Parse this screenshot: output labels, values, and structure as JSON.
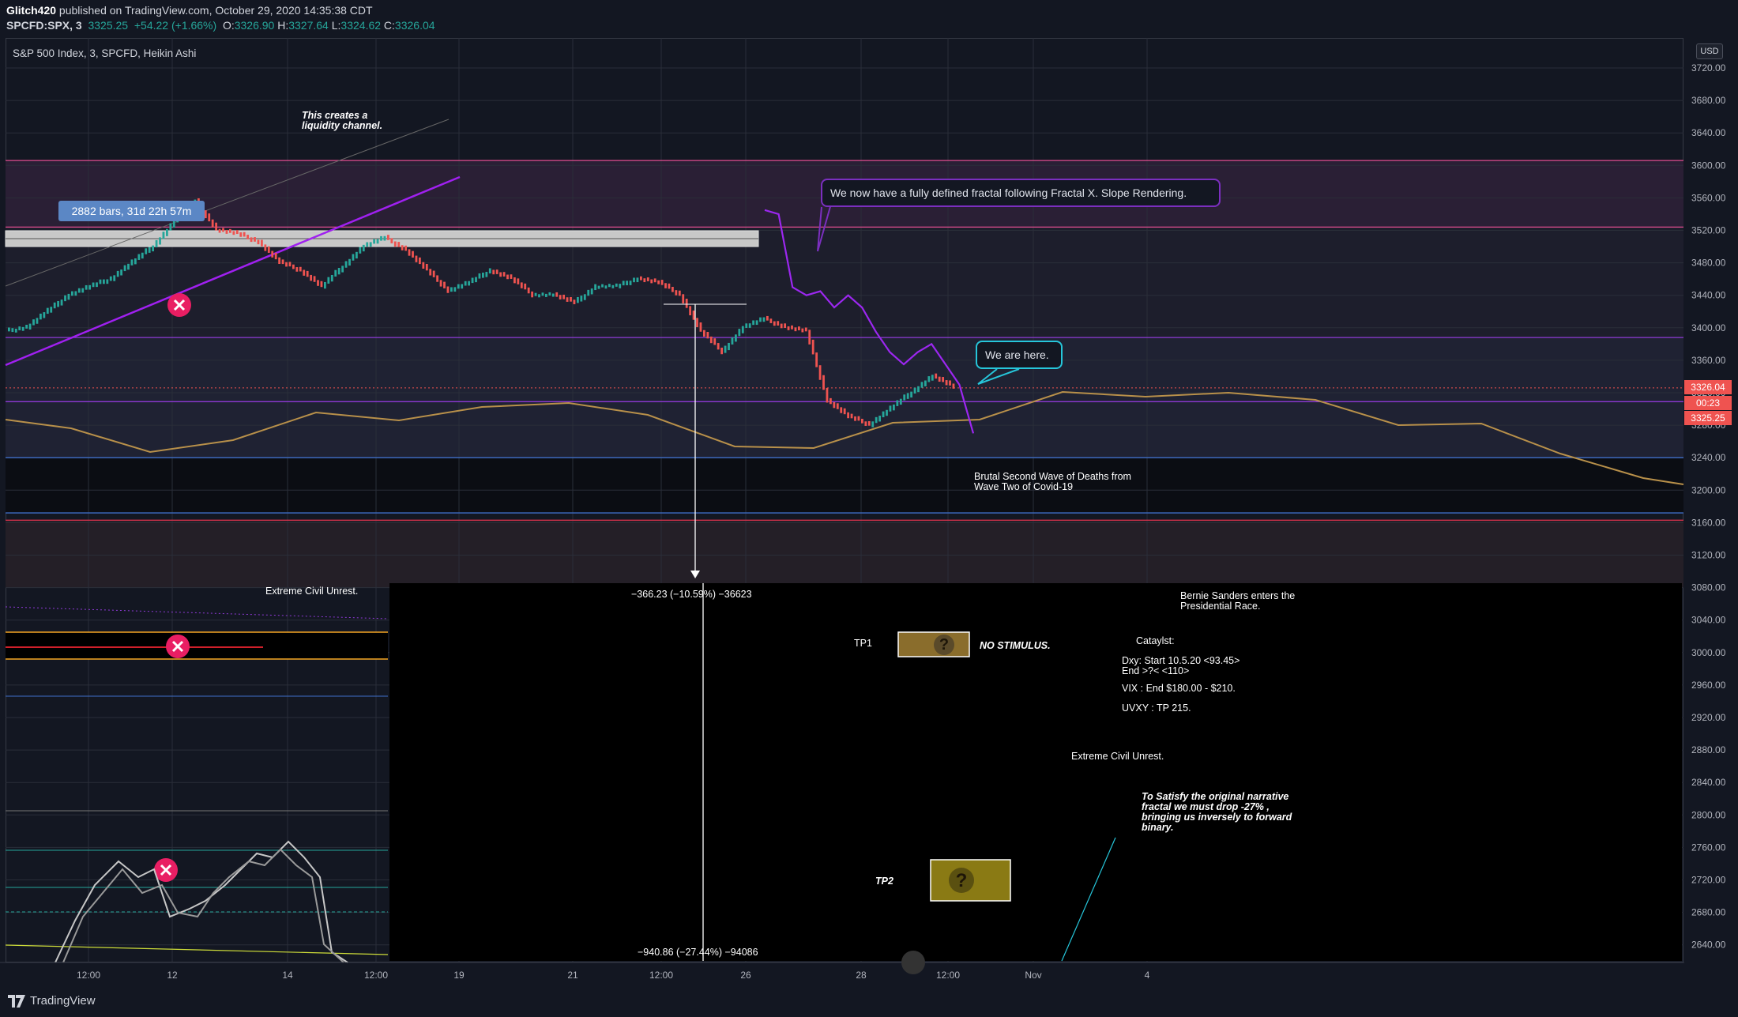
{
  "header": {
    "author": "Glitch420",
    "published": "published on TradingView.com, October 29, 2020 14:35:38 CDT",
    "symbol": "SPCFD:SPX, 3",
    "last": "3325.25",
    "change": "+54.22 (+1.66%)",
    "ohlc": {
      "o": "3326.90",
      "h": "3327.64",
      "l": "3324.62",
      "c": "3326.04"
    }
  },
  "chart_title": "S&P 500 Index, 3, SPCFD, Heikin Ashi",
  "currency": "USD",
  "footer": {
    "brand": "TradingView"
  },
  "price_tags": {
    "close": "3326.04",
    "countdown": "00:23",
    "last": "3325.25"
  },
  "annotations": {
    "liquidity": "This creates a liquidity channel.",
    "bars_range": "2882 bars, 31d 22h 57m",
    "fractal_bubble": "We now have a fully defined fractal following Fractal X. Slope Rendering.",
    "here_bubble": "We are here.",
    "second_wave": "Brutal Second Wave of Deaths from Wave Two of Covid-19",
    "civil_unrest_1": "Extreme Civil Unrest.",
    "civil_unrest_2": "Extreme Civil Unrest.",
    "measure_1": "−366.23 (−10.59%) −36623",
    "measure_2": "−940.86 (−27.44%) −94086",
    "bernie": "Bernie Sanders enters the Presidential Race.",
    "tp1": "TP1",
    "no_stimulus": "NO STIMULUS.",
    "tp2": "TP2",
    "catalyst": "Cataylst:",
    "dxy": "Dxy: Start 10.5.20 <93.45> End >?< <110>",
    "vix": "VIX : End $180.00 - $210.",
    "uvxy": "UVXY : TP 215.",
    "narrative": "To Satisfy the original narrative fractal we must drop -27% , bringing us inversely to forward binary.",
    "question": "?"
  },
  "colors": {
    "background": "#131722",
    "up": "#26a69a",
    "down": "#ef5350",
    "purple_projection": "#9c27f0",
    "trend": "#a020f0",
    "tan_line": "#b8904a",
    "cyan": "#26c6da",
    "x_marker": "#e91e63"
  },
  "chart_data": {
    "type": "line",
    "title": "S&P 500 Index, 3, SPCFD, Heikin Ashi",
    "y_axis_ticks": [
      3720,
      3680,
      3640,
      3600,
      3560,
      3520,
      3480,
      3440,
      3400,
      3360,
      3320,
      3280,
      3240,
      3200,
      3160,
      3120,
      3080,
      3040,
      3000,
      2960,
      2920,
      2880,
      2840,
      2800,
      2760,
      2720,
      2680,
      2640
    ],
    "x_axis_ticks": [
      "12:00",
      "12",
      "14",
      "12:00",
      "19",
      "21",
      "12:00",
      "26",
      "28",
      "12:00",
      "Nov",
      "4"
    ],
    "ylim": [
      2620,
      3740
    ],
    "series": [
      {
        "values": [
          3395,
          3400,
          3420,
          3440,
          3450,
          3460,
          3480,
          3500,
          3530,
          3555,
          3520,
          3515,
          3505,
          3480,
          3470,
          3450,
          3475,
          3500,
          3510,
          3495,
          3470,
          3445,
          3455,
          3470,
          3460,
          3440,
          3440,
          3430,
          3450,
          3450,
          3460,
          3455,
          3440,
          3395,
          3370,
          3400,
          3410,
          3400,
          3395,
          3310,
          3290,
          3280,
          3300,
          3320,
          3340,
          3326
        ]
      },
      {
        "values": [
          3545,
          3540,
          3450,
          3440,
          3445,
          3425,
          3440,
          3425,
          3395,
          3370,
          3355,
          3370,
          3380,
          3355,
          3330,
          3270
        ]
      },
      {
        "values": [
          3290,
          3280,
          3255,
          3262,
          3280,
          3285,
          3300,
          3300,
          3275,
          3256,
          3256,
          3280,
          3298,
          3308,
          3313,
          3310,
          3308,
          3292,
          3290,
          3237,
          3225
        ]
      }
    ],
    "levels": [
      3606,
      3524,
      3388,
      3309,
      3240,
      3172,
      3163
    ],
    "grid": true
  }
}
